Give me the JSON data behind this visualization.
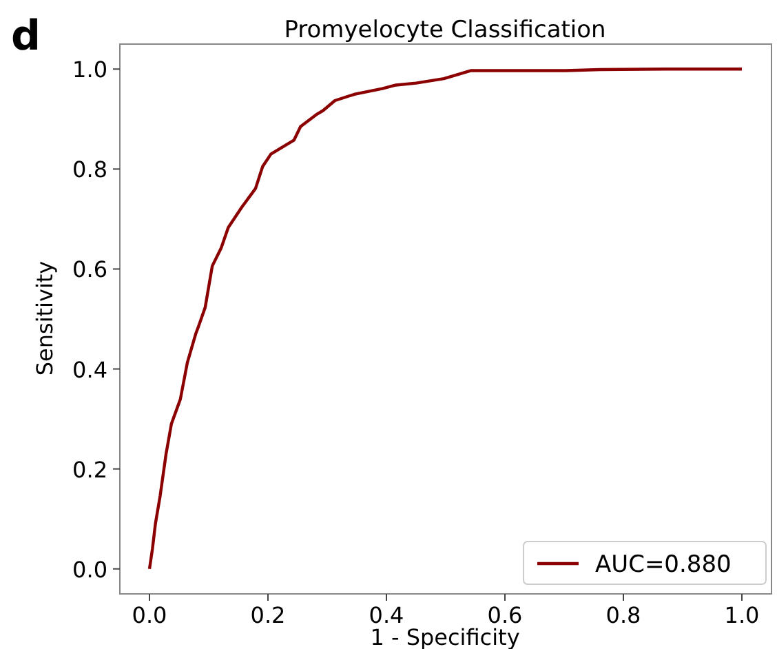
{
  "chart_data": {
    "type": "line",
    "title": "Promyelocyte Classification",
    "xlabel": "1 - Specificity",
    "ylabel": "Sensitivity",
    "annotations": [
      "d"
    ],
    "xlim": [
      -0.05,
      1.05
    ],
    "ylim": [
      -0.05,
      1.05
    ],
    "xticks": [
      {
        "value": 0,
        "label": "0.0"
      },
      0.2,
      0.4,
      0.6,
      0.8,
      {
        "value": 1,
        "label": "1.0"
      }
    ],
    "yticks": [
      {
        "value": 0,
        "label": "0.0"
      },
      0.2,
      0.4,
      0.6,
      0.8,
      {
        "value": 1,
        "label": "1.0"
      }
    ],
    "grid": false,
    "legend": "bottom right",
    "line_style": "solid",
    "marker": "none",
    "series": [
      {
        "name": "AUC=0.880",
        "color": "#8b0000",
        "x": [
          0,
          0.005,
          0.01,
          0.018,
          0.028,
          0.034,
          0.037,
          0.052,
          0.064,
          0.078,
          0.083,
          0.094,
          0.106,
          0.121,
          0.133,
          0.156,
          0.179,
          0.191,
          0.205,
          0.244,
          0.255,
          0.283,
          0.293,
          0.313,
          0.347,
          0.393,
          0.416,
          0.45,
          0.497,
          0.543,
          0.703,
          0.76,
          0.87,
          1.0
        ],
        "values": [
          0,
          0.04,
          0.09,
          0.146,
          0.23,
          0.27,
          0.29,
          0.339,
          0.413,
          0.47,
          0.486,
          0.523,
          0.606,
          0.642,
          0.683,
          0.724,
          0.761,
          0.805,
          0.83,
          0.858,
          0.885,
          0.91,
          0.917,
          0.937,
          0.95,
          0.961,
          0.968,
          0.972,
          0.981,
          0.997,
          0.997,
          0.999,
          1.0,
          1.0
        ]
      }
    ]
  }
}
